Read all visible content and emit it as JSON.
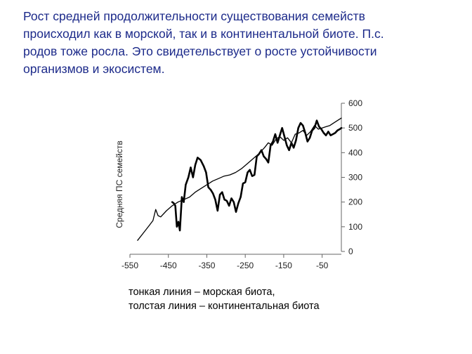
{
  "heading": {
    "lines": [
      "Рост средней продолжительности существования семейств",
      "происходил как в морской, так и в континентальной биоте. П.с.",
      "родов тоже росла. Это свидетельствует о росте устойчивости",
      "организмов и экосистем."
    ]
  },
  "caption": {
    "lines": [
      "тонкая линия – морская биота,",
      "толстая линия – континентальная биота"
    ]
  },
  "colors": {
    "heading": "#1c2a8a",
    "line": "#000000"
  },
  "chart_data": {
    "type": "line",
    "ylabel": "Средняя ПС семейств",
    "xlim": [
      -550,
      0
    ],
    "ylim": [
      0,
      600
    ],
    "x_ticks": [
      -550,
      -450,
      -350,
      -250,
      -150,
      -50
    ],
    "x_tick_labels": [
      "-550",
      "-450",
      "-350",
      "-250",
      "-150",
      "-50"
    ],
    "y_ticks": [
      0,
      100,
      200,
      300,
      400,
      500,
      600
    ],
    "y_tick_labels": [
      "0",
      "100",
      "200",
      "300",
      "400",
      "500",
      "600"
    ],
    "y_axis_side": "right",
    "grid": false,
    "series": [
      {
        "style": "thin",
        "x": [
          -530,
          -515,
          -500,
          -490,
          -483,
          -477,
          -470,
          -455,
          -440,
          -425,
          -410,
          -395,
          -380,
          -365,
          -350,
          -335,
          -320,
          -305,
          -290,
          -275,
          -260,
          -245,
          -230,
          -215,
          -200,
          -190,
          -180,
          -170,
          -160,
          -150,
          -140,
          -130,
          -120,
          -110,
          -100,
          -90,
          -80,
          -70,
          -60,
          -50,
          -40,
          -30,
          -20,
          -10,
          0
        ],
        "y": [
          45,
          75,
          105,
          125,
          170,
          145,
          140,
          165,
          185,
          200,
          210,
          220,
          240,
          255,
          270,
          285,
          295,
          305,
          310,
          320,
          335,
          355,
          375,
          395,
          420,
          440,
          430,
          455,
          465,
          450,
          460,
          440,
          475,
          480,
          490,
          470,
          485,
          510,
          495,
          500,
          505,
          510,
          520,
          530,
          540
        ]
      },
      {
        "style": "thick",
        "x": [
          -440,
          -436,
          -432,
          -428,
          -424,
          -420,
          -415,
          -410,
          -405,
          -398,
          -392,
          -386,
          -380,
          -374,
          -366,
          -358,
          -352,
          -346,
          -340,
          -334,
          -328,
          -322,
          -316,
          -310,
          -304,
          -298,
          -292,
          -286,
          -280,
          -274,
          -268,
          -262,
          -256,
          -250,
          -244,
          -238,
          -232,
          -226,
          -220,
          -214,
          -208,
          -202,
          -196,
          -190,
          -184,
          -178,
          -172,
          -166,
          -160,
          -154,
          -148,
          -142,
          -136,
          -130,
          -124,
          -118,
          -112,
          -106,
          -100,
          -94,
          -88,
          -82,
          -76,
          -70,
          -64,
          -58,
          -52,
          -46,
          -40,
          -34,
          -28,
          -22,
          -16,
          -10,
          -4,
          0
        ],
        "y": [
          200,
          195,
          185,
          100,
          120,
          85,
          220,
          200,
          270,
          300,
          340,
          300,
          350,
          380,
          370,
          345,
          320,
          260,
          250,
          235,
          210,
          165,
          230,
          240,
          210,
          205,
          185,
          215,
          200,
          160,
          195,
          220,
          275,
          280,
          320,
          330,
          305,
          310,
          385,
          395,
          410,
          385,
          375,
          360,
          430,
          445,
          475,
          440,
          470,
          500,
          465,
          430,
          410,
          440,
          420,
          450,
          500,
          520,
          510,
          480,
          445,
          460,
          490,
          500,
          530,
          505,
          495,
          480,
          470,
          485,
          470,
          475,
          480,
          490,
          495,
          500
        ]
      }
    ]
  }
}
